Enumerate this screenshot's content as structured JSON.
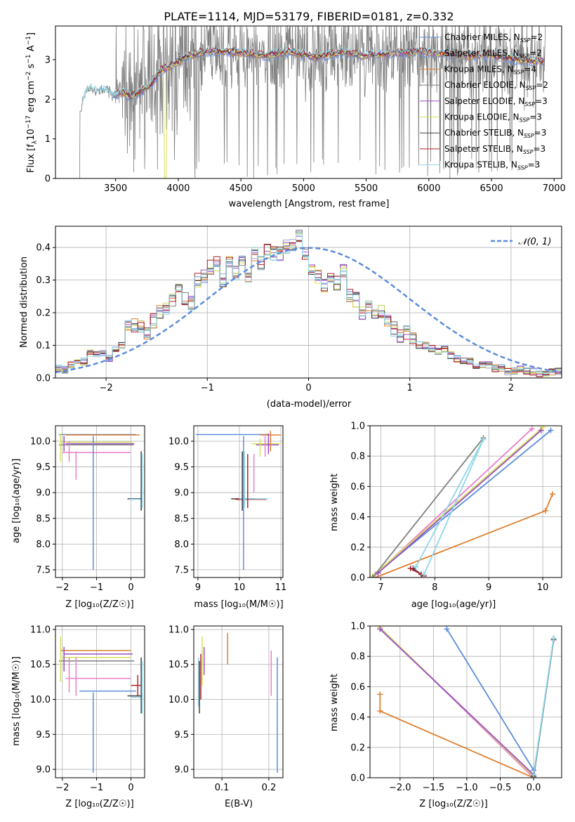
{
  "title": "PLATE=1114, MJD=53179, FIBERID=0181, z=0.332",
  "colors": {
    "chabrier_miles": "#5b8ddb",
    "salpeter_miles": "#9ba4c8",
    "kroupa_miles": "#e07f2e",
    "chabrier_elodie": "#7f7f7f",
    "salpeter_elodie": "#9b4fc8",
    "kroupa_elodie": "#d8e05a",
    "chabrier_stelib": "#404040",
    "salpeter_stelib": "#b0202a",
    "kroupa_stelib": "#8fd7e8",
    "pink": "#e87fc8",
    "grid": "#b0b0b0",
    "normal_curve": "#5b8ddb"
  },
  "legend": [
    {
      "base": "Chabrier MILES, N",
      "sub": "SSP",
      "tail": "=2",
      "color": "#5b8ddb"
    },
    {
      "base": "Salpeter MILES, N",
      "sub": "SSP",
      "tail": "=2",
      "color": "#9ba4c8"
    },
    {
      "base": "Kroupa MILES, N",
      "sub": "SSP",
      "tail": "=4",
      "color": "#e07f2e"
    },
    {
      "base": "Chabrier ELODIE, N",
      "sub": "SSP",
      "tail": "=2",
      "color": "#7f7f7f"
    },
    {
      "base": "Salpeter ELODIE, N",
      "sub": "SSP",
      "tail": "=3",
      "color": "#9b4fc8"
    },
    {
      "base": "Kroupa ELODIE, N",
      "sub": "SSP",
      "tail": "=3",
      "color": "#d8e05a"
    },
    {
      "base": "Chabrier STELIB, N",
      "sub": "SSP",
      "tail": "=3",
      "color": "#404040"
    },
    {
      "base": "Salpeter STELIB, N",
      "sub": "SSP",
      "tail": "=3",
      "color": "#b0202a"
    },
    {
      "base": "Kroupa STELIB, N",
      "sub": "SSP",
      "tail": "=3",
      "color": "#8fd7e8"
    }
  ],
  "chart_data": [
    {
      "type": "line",
      "name": "spectrum",
      "xlabel": "wavelength [Angstrom, rest frame]",
      "ylabel": "Flux [f_λ 10^-17 erg cm^-2 s^-1 A^-1]",
      "xlim": [
        3020,
        7060
      ],
      "ylim": [
        0,
        3.85
      ],
      "xticks": [
        "3500",
        "4000",
        "4500",
        "5000",
        "5500",
        "6000",
        "6500",
        "7000"
      ],
      "yticks": [
        "0",
        "1",
        "2",
        "3"
      ],
      "model_continuum": {
        "x": [
          3210,
          3280,
          3350,
          3420,
          3480,
          3560,
          3620,
          3700,
          3780,
          3850,
          3950,
          4050,
          4150,
          4300,
          4500,
          4700,
          4900,
          5100,
          5300,
          5500,
          5700,
          5900,
          6100,
          6300,
          6500,
          6700,
          6900
        ],
        "y": [
          1.75,
          2.28,
          2.22,
          2.25,
          2.1,
          2.18,
          2.05,
          2.2,
          2.35,
          2.7,
          2.85,
          3.05,
          3.15,
          3.22,
          3.18,
          3.1,
          3.2,
          3.05,
          3.18,
          3.1,
          3.15,
          3.2,
          3.15,
          3.08,
          3.1,
          3.0,
          2.95
        ]
      },
      "observed_range": [
        3210,
        6930
      ]
    },
    {
      "type": "bar",
      "name": "residual histogram",
      "xlabel": "(data-model)/error",
      "ylabel": "Normed distribution",
      "xlim": [
        -2.5,
        2.5
      ],
      "ylim": [
        0,
        0.465
      ],
      "xticks": [
        "−2",
        "−1",
        "0",
        "1",
        "2"
      ],
      "yticks": [
        "0.0",
        "0.1",
        "0.2",
        "0.3",
        "0.4"
      ],
      "bin_width": 0.1,
      "legend": "𝒩(0, 1)",
      "reference_heights": [
        0.03,
        0.025,
        0.04,
        0.045,
        0.05,
        0.075,
        0.07,
        0.075,
        0.06,
        0.09,
        0.1,
        0.155,
        0.16,
        0.155,
        0.14,
        0.175,
        0.2,
        0.21,
        0.24,
        0.27,
        0.24,
        0.23,
        0.3,
        0.31,
        0.34,
        0.35,
        0.3,
        0.36,
        0.32,
        0.36,
        0.31,
        0.38,
        0.35,
        0.39,
        0.38,
        0.38,
        0.4,
        0.41,
        0.44,
        0.38,
        0.33,
        0.31,
        0.28,
        0.31,
        0.29,
        0.33,
        0.25,
        0.24,
        0.2,
        0.22,
        0.19,
        0.2,
        0.18,
        0.15,
        0.13,
        0.14,
        0.12,
        0.1,
        0.1,
        0.09,
        0.08,
        0.09,
        0.07,
        0.06,
        0.05,
        0.05,
        0.04,
        0.04,
        0.04,
        0.03,
        0.03,
        0.02,
        0.02,
        0.03,
        0.02,
        0.02,
        0.015,
        0.015,
        0.02,
        0.02
      ]
    },
    {
      "type": "scatter",
      "name": "age vs Z",
      "xlabel": "Z [log₁₀(Z/Z☉)]",
      "ylabel": "age  [log₁₀(age/yr)]",
      "xlim": [
        -2.2,
        0.4
      ],
      "ylim": [
        7.35,
        10.3
      ],
      "xticks": [
        "−2",
        "−1",
        "0"
      ],
      "yticks": [
        "7.5",
        "8.0",
        "8.5",
        "9.0",
        "9.5",
        "10.0"
      ],
      "vlines": [
        {
          "x": -2.05,
          "y": [
            9.6,
            10.15
          ],
          "color": "#d8e05a"
        },
        {
          "x": -1.95,
          "y": [
            9.8,
            10.1
          ],
          "color": "#9b4fc8"
        },
        {
          "x": -1.8,
          "y": [
            9.6,
            10.0
          ],
          "color": "#e87fc8"
        },
        {
          "x": -1.6,
          "y": [
            9.25,
            9.8
          ],
          "color": "#e87fc8"
        },
        {
          "x": -1.1,
          "y": [
            7.5,
            10.1
          ],
          "color": "#5b8ddb"
        },
        {
          "x": 0.3,
          "y": [
            8.65,
            9.8
          ],
          "color": "#404040"
        },
        {
          "x": 0.33,
          "y": [
            8.7,
            9.75
          ],
          "color": "#8fd7e8"
        }
      ],
      "hlines": [
        {
          "y": 10.13,
          "x": [
            -2.1,
            0.15
          ],
          "color": "#5b8ddb"
        },
        {
          "y": 10.12,
          "x": [
            -1.9,
            0.25
          ],
          "color": "#e07f2e"
        },
        {
          "y": 9.98,
          "x": [
            -2.05,
            0.05
          ],
          "color": "#d8e05a"
        },
        {
          "y": 9.95,
          "x": [
            -1.9,
            0.1
          ],
          "color": "#9b4fc8"
        },
        {
          "y": 9.93,
          "x": [
            -2.1,
            0.08
          ],
          "color": "#7f7f7f"
        },
        {
          "y": 9.78,
          "x": [
            -2.0,
            0.0
          ],
          "color": "#e87fc8"
        },
        {
          "y": 8.88,
          "x": [
            -0.1,
            0.3
          ],
          "color": "#404040"
        },
        {
          "y": 8.87,
          "x": [
            -0.05,
            0.32
          ],
          "color": "#8fd7e8"
        }
      ]
    },
    {
      "type": "scatter",
      "name": "age vs mass",
      "xlabel": "mass [log₁₀(M/M☉)]",
      "ylabel": "",
      "xlim": [
        8.9,
        11.05
      ],
      "ylim": [
        7.35,
        10.3
      ],
      "xticks": [
        "9",
        "10",
        "11"
      ],
      "yticks": [
        "7.5",
        "8.0",
        "8.5",
        "9.0",
        "9.5",
        "10.0"
      ],
      "vlines": [
        {
          "x": 10.1,
          "y": [
            7.5,
            10.1
          ],
          "color": "#5b8ddb"
        },
        {
          "x": 10.07,
          "y": [
            8.65,
            9.8
          ],
          "color": "#404040"
        },
        {
          "x": 10.12,
          "y": [
            8.7,
            9.8
          ],
          "color": "#8fd7e8"
        },
        {
          "x": 10.2,
          "y": [
            8.7,
            9.75
          ],
          "color": "#b0202a"
        },
        {
          "x": 10.35,
          "y": [
            9.0,
            9.75
          ],
          "color": "#e87fc8"
        },
        {
          "x": 10.5,
          "y": [
            9.7,
            10.05
          ],
          "color": "#d8e05a"
        },
        {
          "x": 10.62,
          "y": [
            9.7,
            10.1
          ],
          "color": "#e87fc8"
        },
        {
          "x": 10.7,
          "y": [
            9.75,
            10.15
          ],
          "color": "#9b4fc8"
        },
        {
          "x": 10.75,
          "y": [
            9.8,
            10.2
          ],
          "color": "#e07f2e"
        }
      ],
      "hlines": [
        {
          "y": 10.13,
          "x": [
            8.95,
            10.7
          ],
          "color": "#5b8ddb"
        },
        {
          "y": 10.12,
          "x": [
            10.5,
            11.0
          ],
          "color": "#e07f2e"
        },
        {
          "y": 9.95,
          "x": [
            10.3,
            11.0
          ],
          "color": "#d8e05a"
        },
        {
          "y": 9.93,
          "x": [
            10.4,
            10.95
          ],
          "color": "#9b4fc8"
        },
        {
          "y": 8.88,
          "x": [
            9.8,
            10.4
          ],
          "color": "#404040"
        },
        {
          "y": 8.87,
          "x": [
            9.9,
            10.65
          ],
          "color": "#b0202a"
        },
        {
          "y": 8.88,
          "x": [
            10.0,
            10.7
          ],
          "color": "#8fd7e8"
        }
      ]
    },
    {
      "type": "line",
      "name": "mass weight vs age",
      "xlabel": "age  [log₁₀(age/yr)]",
      "ylabel": "mass weight",
      "xlim": [
        6.8,
        10.35
      ],
      "ylim": [
        0,
        1.0
      ],
      "xticks": [
        "7",
        "8",
        "9",
        "10"
      ],
      "yticks": [
        "0.0",
        "0.2",
        "0.4",
        "0.6",
        "0.8",
        "1.0"
      ],
      "series": [
        {
          "color": "#5b8ddb",
          "x": [
            6.9,
            10.15
          ],
          "y": [
            0.02,
            0.97
          ]
        },
        {
          "color": "#e07f2e",
          "x": [
            6.9,
            10.05,
            10.18
          ],
          "y": [
            0.0,
            0.44,
            0.55
          ]
        },
        {
          "color": "#e87fc8",
          "x": [
            6.9,
            9.8
          ],
          "y": [
            0.02,
            0.98
          ]
        },
        {
          "color": "#d8e05a",
          "x": [
            6.85,
            10.0
          ],
          "y": [
            0.01,
            0.99
          ]
        },
        {
          "color": "#9b4fc8",
          "x": [
            6.95,
            9.97
          ],
          "y": [
            0.03,
            0.97
          ]
        },
        {
          "color": "#7f7f7f",
          "x": [
            6.85,
            8.9
          ],
          "y": [
            0.0,
            0.92
          ]
        },
        {
          "color": "#404040",
          "x": [
            7.6,
            7.75
          ],
          "y": [
            0.06,
            0.02
          ]
        },
        {
          "color": "#b0202a",
          "x": [
            7.55,
            7.8
          ],
          "y": [
            0.06,
            0.01
          ]
        },
        {
          "color": "#8fd7e8",
          "x": [
            7.8,
            8.9,
            7.65
          ],
          "y": [
            0.02,
            0.91,
            0.07
          ]
        }
      ]
    },
    {
      "type": "scatter",
      "name": "mass vs Z",
      "xlabel": "Z [log₁₀(Z/Z☉)]",
      "ylabel": "mass [log₁₀(M/M☉)]",
      "xlim": [
        -2.2,
        0.4
      ],
      "ylim": [
        8.88,
        11.05
      ],
      "xticks": [
        "−2",
        "−1",
        "0"
      ],
      "yticks": [
        "9.0",
        "9.5",
        "10.0",
        "10.5",
        "11.0"
      ],
      "vlines": [
        {
          "x": -2.05,
          "y": [
            10.25,
            10.9
          ],
          "color": "#d8e05a"
        },
        {
          "x": -1.95,
          "y": [
            10.4,
            10.75
          ],
          "color": "#9b4fc8"
        },
        {
          "x": -1.8,
          "y": [
            10.1,
            10.6
          ],
          "color": "#e87fc8"
        },
        {
          "x": -1.6,
          "y": [
            10.05,
            10.6
          ],
          "color": "#e87fc8"
        },
        {
          "x": -1.1,
          "y": [
            8.95,
            10.1
          ],
          "color": "#5b8ddb"
        },
        {
          "x": 0.2,
          "y": [
            10.05,
            10.35
          ],
          "color": "#b0202a"
        },
        {
          "x": 0.3,
          "y": [
            9.8,
            10.6
          ],
          "color": "#404040"
        },
        {
          "x": 0.33,
          "y": [
            9.8,
            10.55
          ],
          "color": "#8fd7e8"
        }
      ],
      "hlines": [
        {
          "y": 10.7,
          "x": [
            -2.05,
            0.0
          ],
          "color": "#e07f2e"
        },
        {
          "y": 10.65,
          "x": [
            -1.95,
            0.05
          ],
          "color": "#9b4fc8"
        },
        {
          "y": 10.6,
          "x": [
            -2.0,
            0.0
          ],
          "color": "#d8e05a"
        },
        {
          "y": 10.55,
          "x": [
            -2.1,
            0.1
          ],
          "color": "#7f7f7f"
        },
        {
          "y": 10.3,
          "x": [
            -1.9,
            0.0
          ],
          "color": "#e87fc8"
        },
        {
          "y": 10.2,
          "x": [
            0.0,
            0.3
          ],
          "color": "#b0202a"
        },
        {
          "y": 10.12,
          "x": [
            -1.5,
            0.15
          ],
          "color": "#5b8ddb"
        },
        {
          "y": 10.05,
          "x": [
            -0.1,
            0.35
          ],
          "color": "#404040"
        },
        {
          "y": 10.03,
          "x": [
            0.0,
            0.35
          ],
          "color": "#8fd7e8"
        }
      ]
    },
    {
      "type": "scatter",
      "name": "mass vs E(B-V)",
      "xlabel": "E(B-V)",
      "ylabel": "",
      "xlim": [
        0.04,
        0.23
      ],
      "ylim": [
        8.88,
        11.05
      ],
      "xticks": [
        "0.1",
        "0.2"
      ],
      "yticks": [
        "9.0",
        "9.5",
        "10.0",
        "10.5",
        "11.0"
      ],
      "vlines": [
        {
          "x": 0.05,
          "y": [
            9.9,
            10.6
          ],
          "color": "#8fd7e8"
        },
        {
          "x": 0.052,
          "y": [
            9.8,
            10.55
          ],
          "color": "#404040"
        },
        {
          "x": 0.055,
          "y": [
            10.0,
            10.65
          ],
          "color": "#b0202a"
        },
        {
          "x": 0.058,
          "y": [
            10.2,
            10.9
          ],
          "color": "#d8e05a"
        },
        {
          "x": 0.062,
          "y": [
            10.35,
            10.75
          ],
          "color": "#9b4fc8"
        },
        {
          "x": 0.112,
          "y": [
            10.5,
            10.95
          ],
          "color": "#e07f2e"
        },
        {
          "x": 0.205,
          "y": [
            10.05,
            10.7
          ],
          "color": "#e87fc8"
        },
        {
          "x": 0.218,
          "y": [
            8.95,
            10.6
          ],
          "color": "#5b8ddb"
        }
      ],
      "hlines": []
    },
    {
      "type": "line",
      "name": "mass weight vs Z",
      "xlabel": "Z [log₁₀(Z/Z☉)]",
      "ylabel": "mass weight",
      "xlim": [
        -2.45,
        0.42
      ],
      "ylim": [
        0,
        1.0
      ],
      "xticks": [
        "−2.0",
        "−1.5",
        "−1.0",
        "−0.5",
        "0.0"
      ],
      "yticks": [
        "0.0",
        "0.2",
        "0.4",
        "0.6",
        "0.8",
        "1.0"
      ],
      "series": [
        {
          "color": "#5b8ddb",
          "x": [
            -1.3,
            0.0
          ],
          "y": [
            0.98,
            0.05
          ]
        },
        {
          "color": "#e07f2e",
          "x": [
            -2.3,
            -2.3,
            0.0
          ],
          "y": [
            0.55,
            0.44,
            0.0
          ]
        },
        {
          "color": "#e87fc8",
          "x": [
            -2.3,
            0.0
          ],
          "y": [
            0.99,
            0.0
          ]
        },
        {
          "color": "#d8e05a",
          "x": [
            -2.3,
            0.0
          ],
          "y": [
            0.99,
            0.01
          ]
        },
        {
          "color": "#9b4fc8",
          "x": [
            -2.3,
            0.0
          ],
          "y": [
            0.98,
            0.02
          ]
        },
        {
          "color": "#7f7f7f",
          "x": [
            0.0,
            0.3
          ],
          "y": [
            0.0,
            0.92
          ]
        },
        {
          "color": "#404040",
          "x": [
            0.0,
            0.3
          ],
          "y": [
            0.01,
            0.91
          ]
        },
        {
          "color": "#8fd7e8",
          "x": [
            0.0,
            0.3
          ],
          "y": [
            0.02,
            0.92
          ]
        }
      ]
    }
  ]
}
